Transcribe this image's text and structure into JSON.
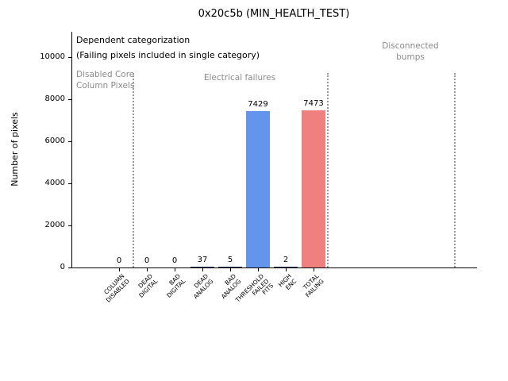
{
  "chart_data": {
    "type": "bar",
    "title": "0x20c5b (MIN_HEALTH_TEST)",
    "ylabel": "Number of pixels",
    "xlabel": "",
    "ylim": [
      0,
      11200
    ],
    "yticks": [
      0,
      2000,
      4000,
      6000,
      8000,
      10000
    ],
    "grid": false,
    "legend": null,
    "categories": [
      "COLUMN\nDISABLED",
      "DEAD\nDIGITAL",
      "BAD\nDIGITAL",
      "DEAD\nANALOG",
      "BAD\nANALOG",
      "THRESHOLD\nFAILED\nFITS",
      "HIGH\nENC",
      "TOTAL\nFAILING"
    ],
    "values": [
      0,
      0,
      0,
      37,
      5,
      7429,
      2,
      7473
    ],
    "bar_colors": [
      "#1b2f5e",
      "#1b2f5e",
      "#1b2f5e",
      "#1b2f5e",
      "#1b2f5e",
      "#6495ed",
      "#1b2f5e",
      "#f08080"
    ],
    "annotation_lines": [
      "Dependent categorization",
      "(Failing pixels included in single category)"
    ],
    "section_labels": [
      "Disabled Core\nColumn Pixels",
      "Electrical failures",
      "Disconnected\nbumps"
    ],
    "section_divider_color": "#9a9a9a",
    "section_label_color": "#8a8a8a"
  }
}
